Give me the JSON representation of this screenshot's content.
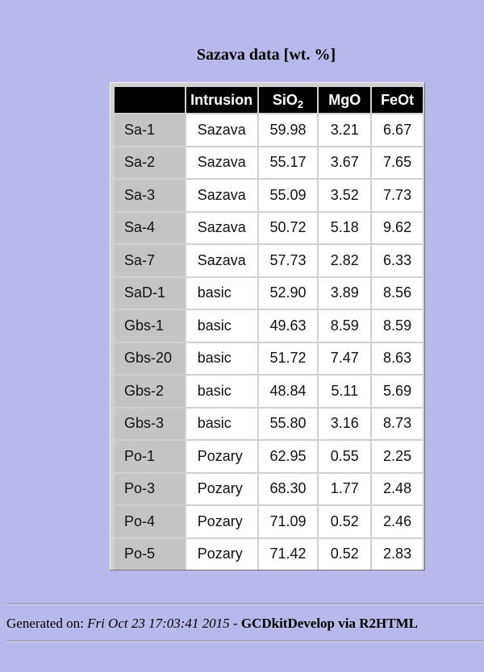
{
  "caption": "Sazava data [wt. %]",
  "table": {
    "headers": {
      "intrusion": "Intrusion",
      "sio2_base": "SiO",
      "sio2_sub": "2",
      "mgo": "MgO",
      "feot": "FeOt"
    },
    "rows": [
      {
        "sample": "Sa-1",
        "intrusion": "Sazava",
        "sio2": "59.98",
        "mgo": "3.21",
        "feot": "6.67"
      },
      {
        "sample": "Sa-2",
        "intrusion": "Sazava",
        "sio2": "55.17",
        "mgo": "3.67",
        "feot": "7.65"
      },
      {
        "sample": "Sa-3",
        "intrusion": "Sazava",
        "sio2": "55.09",
        "mgo": "3.52",
        "feot": "7.73"
      },
      {
        "sample": "Sa-4",
        "intrusion": "Sazava",
        "sio2": "50.72",
        "mgo": "5.18",
        "feot": "9.62"
      },
      {
        "sample": "Sa-7",
        "intrusion": "Sazava",
        "sio2": "57.73",
        "mgo": "2.82",
        "feot": "6.33"
      },
      {
        "sample": "SaD-1",
        "intrusion": "basic",
        "sio2": "52.90",
        "mgo": "3.89",
        "feot": "8.56"
      },
      {
        "sample": "Gbs-1",
        "intrusion": "basic",
        "sio2": "49.63",
        "mgo": "8.59",
        "feot": "8.59"
      },
      {
        "sample": "Gbs-20",
        "intrusion": "basic",
        "sio2": "51.72",
        "mgo": "7.47",
        "feot": "8.63"
      },
      {
        "sample": "Gbs-2",
        "intrusion": "basic",
        "sio2": "48.84",
        "mgo": "5.11",
        "feot": "5.69"
      },
      {
        "sample": "Gbs-3",
        "intrusion": "basic",
        "sio2": "55.80",
        "mgo": "3.16",
        "feot": "8.73"
      },
      {
        "sample": "Po-1",
        "intrusion": "Pozary",
        "sio2": "62.95",
        "mgo": "0.55",
        "feot": "2.25"
      },
      {
        "sample": "Po-3",
        "intrusion": "Pozary",
        "sio2": "68.30",
        "mgo": "1.77",
        "feot": "2.48"
      },
      {
        "sample": "Po-4",
        "intrusion": "Pozary",
        "sio2": "71.09",
        "mgo": "0.52",
        "feot": "2.46"
      },
      {
        "sample": "Po-5",
        "intrusion": "Pozary",
        "sio2": "71.42",
        "mgo": "0.52",
        "feot": "2.83"
      }
    ]
  },
  "footer": {
    "prefix": "Generated on: ",
    "date": "Fri Oct 23 17:03:41 2015",
    "separator": " - ",
    "app": "GCDkitDevelop via R2HTML"
  },
  "colors": {
    "page_background": "#b8b8ea",
    "header_background": "#000000",
    "row_header_background": "#c4c4c4"
  }
}
